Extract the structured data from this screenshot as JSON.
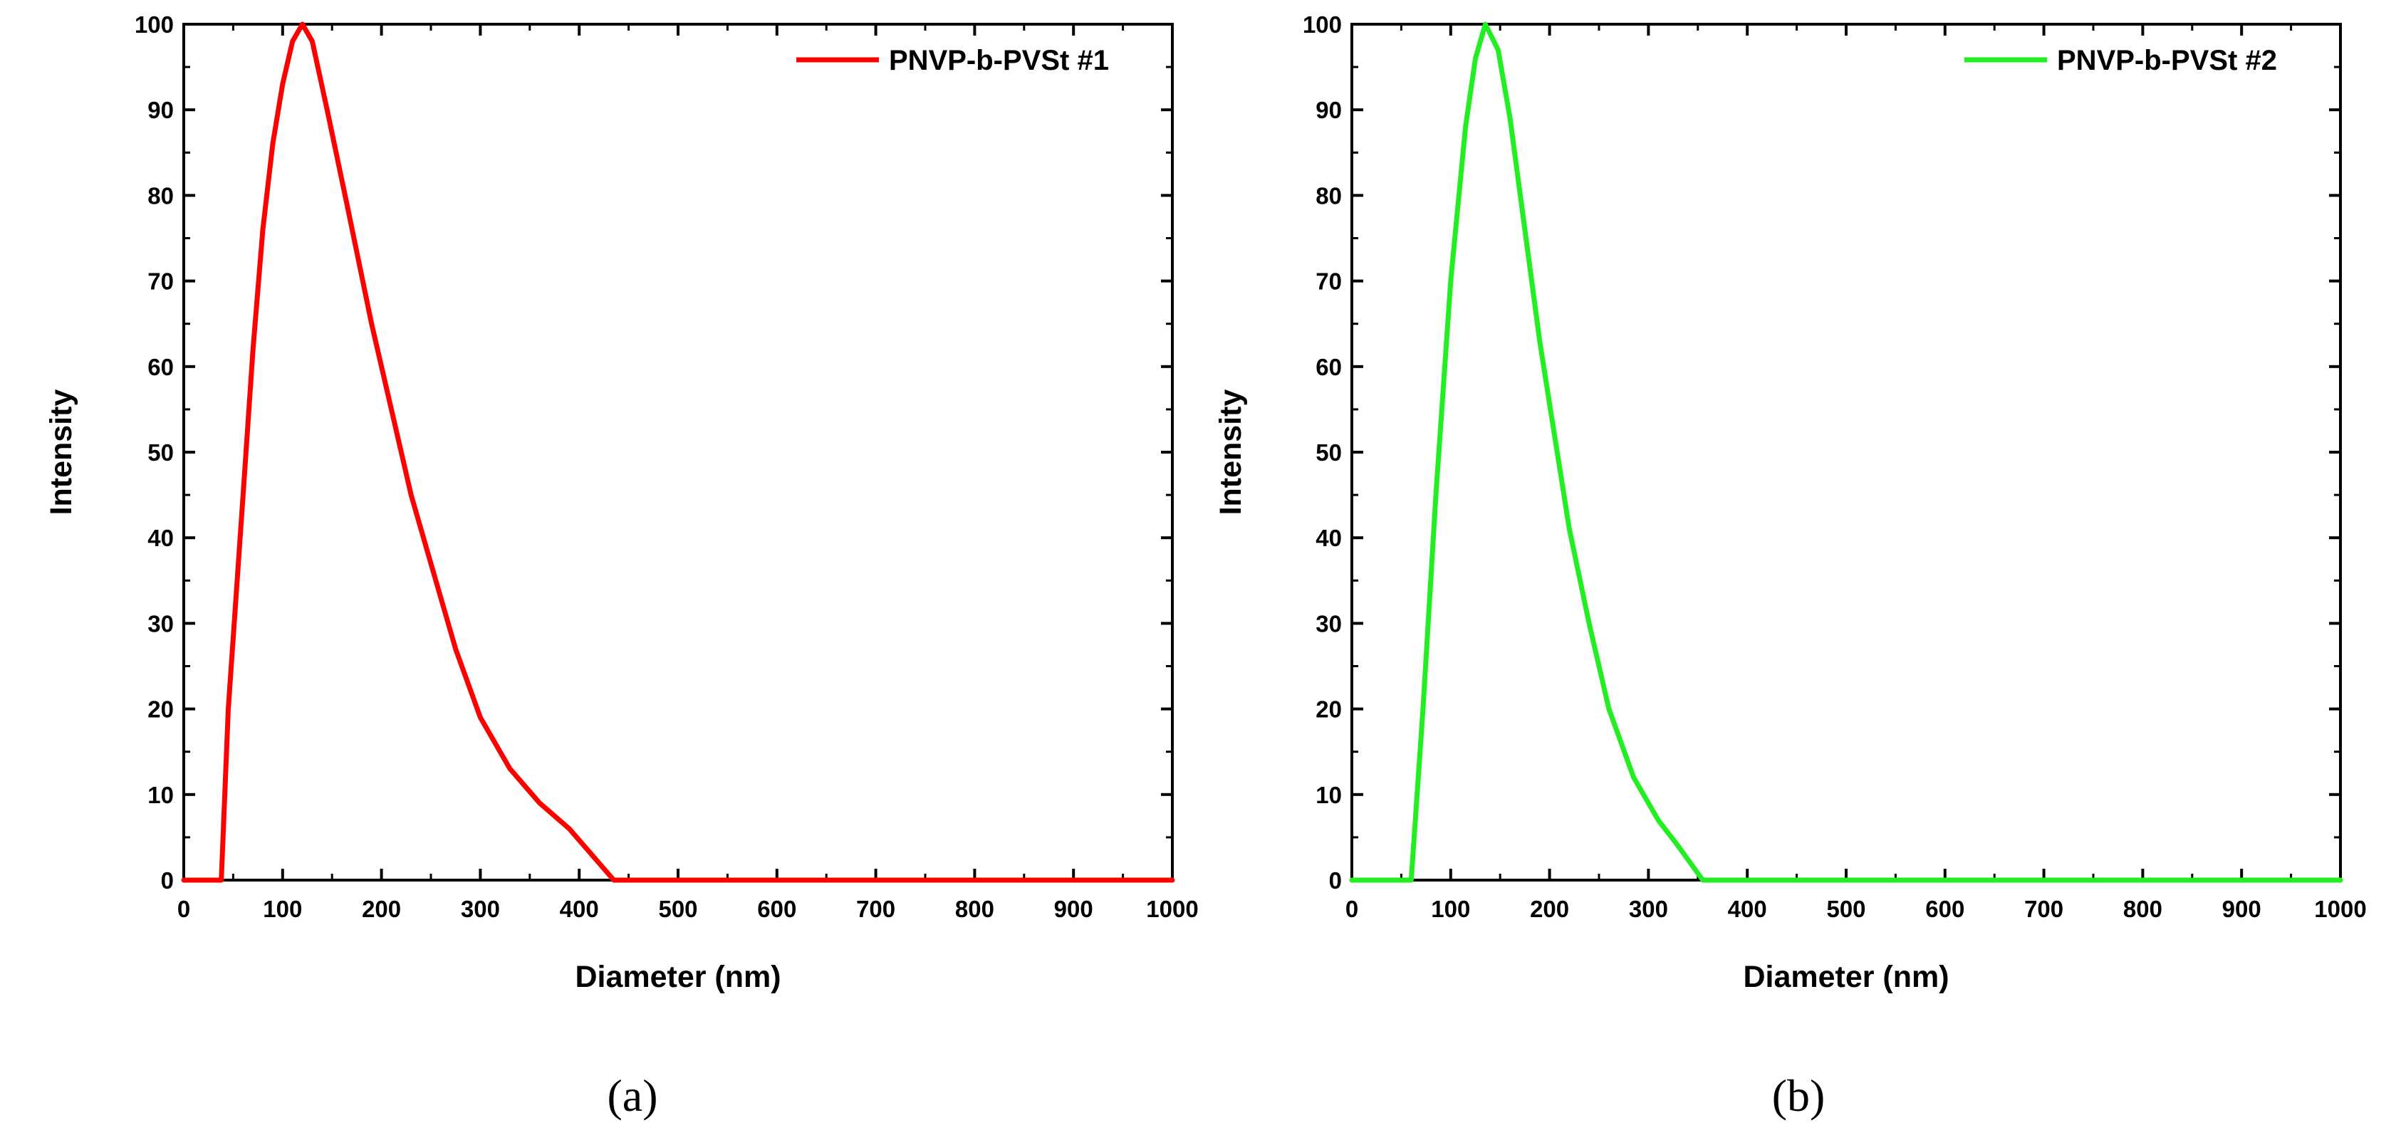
{
  "chart_data": [
    {
      "type": "line",
      "panel_label": "(a)",
      "title": "",
      "xlabel": "Diameter (nm)",
      "ylabel": "Intensity",
      "xlim": [
        0,
        1000
      ],
      "ylim": [
        0,
        100
      ],
      "xticks": [
        0,
        100,
        200,
        300,
        400,
        500,
        600,
        700,
        800,
        900,
        1000
      ],
      "yticks": [
        0,
        10,
        20,
        30,
        40,
        50,
        60,
        70,
        80,
        90,
        100
      ],
      "grid": false,
      "legend_position": "top-right",
      "series": [
        {
          "name": "PNVP-b-PVSt #1",
          "color": "#ff0000",
          "points": [
            [
              0,
              0
            ],
            [
              38,
              0
            ],
            [
              45,
              20
            ],
            [
              60,
              45
            ],
            [
              70,
              62
            ],
            [
              80,
              76
            ],
            [
              90,
              86
            ],
            [
              100,
              93
            ],
            [
              110,
              98
            ],
            [
              120,
              100
            ],
            [
              130,
              98
            ],
            [
              145,
              90
            ],
            [
              165,
              79
            ],
            [
              190,
              65
            ],
            [
              210,
              55
            ],
            [
              230,
              45
            ],
            [
              255,
              35
            ],
            [
              275,
              27
            ],
            [
              300,
              19
            ],
            [
              330,
              13
            ],
            [
              360,
              9
            ],
            [
              390,
              6
            ],
            [
              435,
              0
            ],
            [
              1000,
              0
            ]
          ]
        }
      ]
    },
    {
      "type": "line",
      "panel_label": "(b)",
      "title": "",
      "xlabel": "Diameter (nm)",
      "ylabel": "Intensity",
      "xlim": [
        0,
        1000
      ],
      "ylim": [
        0,
        100
      ],
      "xticks": [
        0,
        100,
        200,
        300,
        400,
        500,
        600,
        700,
        800,
        900,
        1000
      ],
      "yticks": [
        0,
        10,
        20,
        30,
        40,
        50,
        60,
        70,
        80,
        90,
        100
      ],
      "grid": false,
      "legend_position": "top-right",
      "series": [
        {
          "name": "PNVP-b-PVSt #2",
          "color": "#22ee22",
          "points": [
            [
              0,
              0
            ],
            [
              60,
              0
            ],
            [
              72,
              20
            ],
            [
              85,
              45
            ],
            [
              100,
              70
            ],
            [
              115,
              88
            ],
            [
              125,
              96
            ],
            [
              135,
              100
            ],
            [
              148,
              97
            ],
            [
              160,
              89
            ],
            [
              175,
              76
            ],
            [
              190,
              63
            ],
            [
              205,
              52
            ],
            [
              220,
              41
            ],
            [
              240,
              30
            ],
            [
              260,
              20
            ],
            [
              285,
              12
            ],
            [
              310,
              7
            ],
            [
              330,
              4
            ],
            [
              355,
              0
            ],
            [
              1000,
              0
            ]
          ]
        }
      ]
    }
  ]
}
